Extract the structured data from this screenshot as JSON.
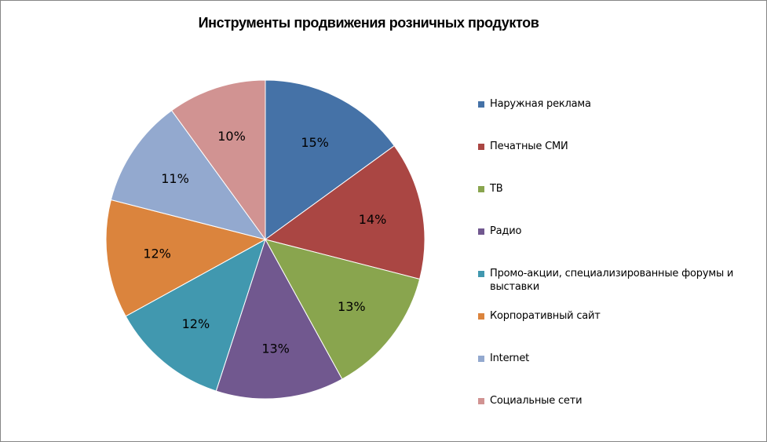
{
  "chart_data": {
    "type": "pie",
    "title": "Инструменты продвижения розничных продуктов",
    "legend_position": "right",
    "categories": [
      "Наружная реклама",
      "Печатные СМИ",
      "ТВ",
      "Радио",
      "Промо-акции, специализированные форумы и выставки",
      "Корпоративный сайт",
      "Internet",
      "Социальные сети"
    ],
    "values": [
      15,
      14,
      13,
      13,
      12,
      12,
      11,
      10
    ],
    "data_labels": [
      "15%",
      "14%",
      "13%",
      "13%",
      "12%",
      "12%",
      "11%",
      "10%"
    ],
    "colors": [
      "#4572A7",
      "#AA4643",
      "#89A54E",
      "#71588F",
      "#4198AF",
      "#DB843D",
      "#93A9CF",
      "#D19392"
    ]
  }
}
